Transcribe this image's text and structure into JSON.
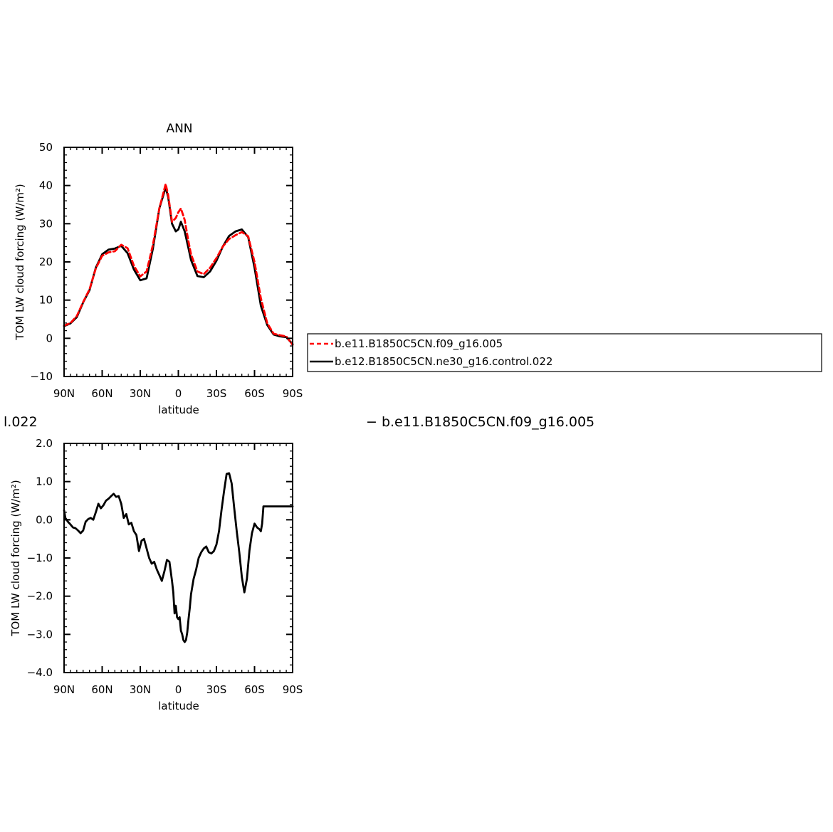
{
  "chart_data": [
    {
      "type": "line",
      "title": "ANN",
      "xlabel": "latitude",
      "ylabel": "TOM LW cloud forcing (W/m²)",
      "xlim": [
        90,
        -90
      ],
      "ylim": [
        -10,
        50
      ],
      "yticks": [
        -10,
        0,
        10,
        20,
        30,
        40,
        50
      ],
      "ytick_labels": [
        "−10",
        "0",
        "10",
        "20",
        "30",
        "40",
        "50"
      ],
      "xticks": [
        90,
        60,
        30,
        0,
        -30,
        -60,
        -90
      ],
      "xtick_labels": [
        "90N",
        "60N",
        "30N",
        "0",
        "30S",
        "60S",
        "90S"
      ],
      "legend_position": "right, outside plot",
      "series": [
        {
          "name": "b.e11.B1850C5CN.f09_g16.005",
          "color": "#ff0000",
          "dash": "dashed",
          "x": [
            90,
            85,
            80,
            75,
            70,
            65,
            60,
            55,
            50,
            45,
            40,
            35,
            30,
            25,
            20,
            15,
            10,
            8,
            5,
            2,
            0,
            -2,
            -5,
            -8,
            -10,
            -15,
            -20,
            -25,
            -30,
            -35,
            -40,
            -45,
            -50,
            -55,
            -60,
            -65,
            -70,
            -75,
            -80,
            -85,
            -90
          ],
          "y": [
            3.3,
            4.0,
            5.8,
            9.5,
            12.8,
            18.3,
            21.6,
            22.5,
            22.8,
            24.5,
            23.6,
            19.0,
            16.2,
            17.5,
            24.5,
            34.0,
            40.4,
            37.5,
            30.5,
            31.5,
            33.0,
            34.0,
            31.0,
            25.3,
            22.0,
            17.5,
            16.8,
            18.5,
            21.0,
            24.0,
            26.0,
            27.0,
            27.8,
            26.7,
            20.0,
            10.5,
            4.0,
            1.2,
            0.8,
            0.5,
            -1.7
          ]
        },
        {
          "name": "b.e12.B1850C5CN.ne30_g16.control.022",
          "color": "#000000",
          "dash": "solid",
          "x": [
            90,
            85,
            80,
            75,
            70,
            65,
            60,
            55,
            50,
            45,
            40,
            35,
            30,
            25,
            20,
            15,
            10,
            8,
            5,
            2,
            0,
            -2,
            -5,
            -8,
            -10,
            -15,
            -20,
            -25,
            -30,
            -35,
            -40,
            -45,
            -50,
            -55,
            -60,
            -65,
            -70,
            -75,
            -80,
            -85,
            -90
          ],
          "y": [
            3.2,
            3.9,
            5.5,
            9.4,
            12.6,
            18.5,
            22.0,
            23.2,
            23.5,
            24.2,
            22.3,
            18.0,
            15.2,
            15.7,
            23.5,
            34.0,
            39.5,
            37.0,
            30.0,
            28.0,
            28.5,
            30.5,
            28.0,
            23.5,
            20.5,
            16.3,
            16.0,
            17.5,
            20.3,
            24.0,
            26.8,
            28.0,
            28.5,
            26.5,
            18.5,
            8.5,
            3.5,
            1.0,
            0.5,
            0.3,
            -1.5
          ]
        }
      ]
    },
    {
      "type": "line",
      "title": "",
      "header_text": "l.022",
      "header_text_right": "−  b.e11.B1850C5CN.f09_g16.005",
      "xlabel": "latitude",
      "ylabel": "TOM LW cloud forcing (W/m²)",
      "xlim": [
        90,
        -90
      ],
      "ylim": [
        -4.0,
        2.0
      ],
      "yticks": [
        -4.0,
        -3.0,
        -2.0,
        -1.0,
        0.0,
        1.0,
        2.0
      ],
      "ytick_labels": [
        "−4.0",
        "−3.0",
        "−2.0",
        "−1.0",
        "0.0",
        "1.0",
        "2.0"
      ],
      "xticks": [
        90,
        60,
        30,
        0,
        -30,
        -60,
        -90
      ],
      "xtick_labels": [
        "90N",
        "60N",
        "30N",
        "0",
        "30S",
        "60S",
        "90S"
      ],
      "series": [
        {
          "color": "#000000",
          "dash": "solid",
          "x": [
            90,
            89,
            87,
            85,
            83,
            81,
            79,
            77,
            75,
            73,
            71,
            69,
            67,
            65,
            63,
            61,
            59,
            57,
            55,
            53,
            51,
            49,
            47,
            45,
            43,
            41,
            39,
            37,
            35,
            33,
            31,
            29,
            27,
            25,
            23,
            21,
            19,
            17,
            15,
            13,
            11,
            9,
            7,
            5,
            4,
            3,
            2,
            1,
            0,
            -1,
            -2,
            -3,
            -4,
            -5,
            -6,
            -7,
            -8,
            -9,
            -10,
            -12,
            -14,
            -16,
            -18,
            -20,
            -22,
            -24,
            -26,
            -28,
            -30,
            -32,
            -34,
            -36,
            -38,
            -40,
            -42,
            -44,
            -46,
            -48,
            -50,
            -52,
            -54,
            -56,
            -58,
            -60,
            -62,
            -64,
            -65,
            -66,
            -67,
            -68,
            -70,
            -72,
            -74,
            -76,
            -78,
            -80,
            -82,
            -84,
            -86,
            -88,
            -90
          ],
          "y": [
            0.25,
            0.05,
            -0.05,
            -0.12,
            -0.2,
            -0.22,
            -0.28,
            -0.35,
            -0.28,
            -0.05,
            0.02,
            0.05,
            0.0,
            0.2,
            0.42,
            0.3,
            0.38,
            0.5,
            0.55,
            0.62,
            0.68,
            0.6,
            0.62,
            0.42,
            0.05,
            0.15,
            -0.12,
            -0.08,
            -0.3,
            -0.4,
            -0.82,
            -0.55,
            -0.5,
            -0.75,
            -1.0,
            -1.15,
            -1.1,
            -1.3,
            -1.45,
            -1.6,
            -1.35,
            -1.05,
            -1.1,
            -1.6,
            -1.9,
            -2.45,
            -2.25,
            -2.55,
            -2.6,
            -2.55,
            -2.9,
            -3.0,
            -3.15,
            -3.2,
            -3.15,
            -2.95,
            -2.6,
            -2.3,
            -1.95,
            -1.55,
            -1.3,
            -1.0,
            -0.85,
            -0.75,
            -0.7,
            -0.85,
            -0.88,
            -0.82,
            -0.65,
            -0.3,
            0.25,
            0.75,
            1.2,
            1.22,
            0.95,
            0.3,
            -0.3,
            -0.85,
            -1.5,
            -1.9,
            -1.55,
            -0.8,
            -0.35,
            -0.1,
            -0.2,
            -0.25,
            -0.3,
            -0.1,
            0.35,
            0.35,
            0.35,
            0.35,
            0.35,
            0.35,
            0.35,
            0.35,
            0.35,
            0.35,
            0.35,
            0.35,
            0.35
          ]
        }
      ]
    }
  ]
}
